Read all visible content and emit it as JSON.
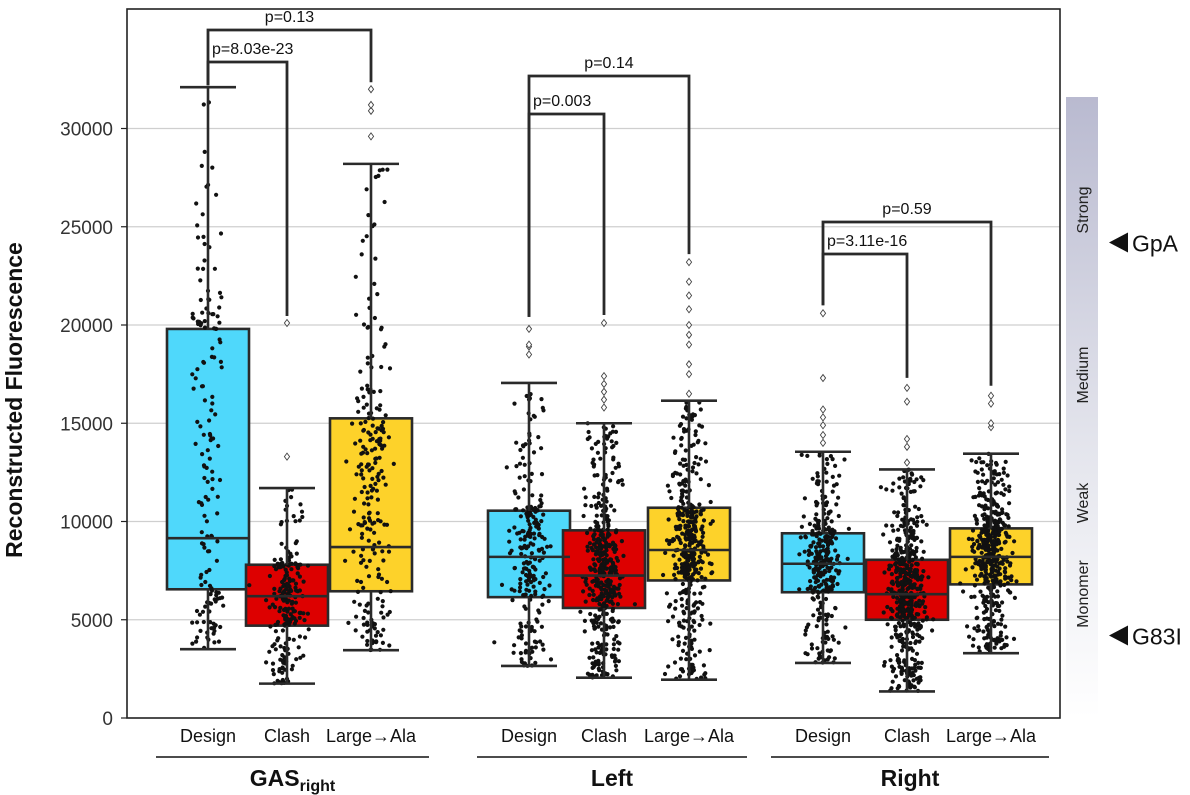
{
  "chart_data": {
    "type": "box",
    "ylabel": "Reconstructed Fluorescence",
    "ylim": [
      0,
      34000
    ],
    "yticks": [
      0,
      5000,
      10000,
      15000,
      20000,
      25000,
      30000
    ],
    "grid": true,
    "groups": [
      {
        "name": "GAS",
        "name_sub": "right",
        "boxes": [
          {
            "category": "Design",
            "color": "#4fd8fb",
            "min": 3500,
            "q1": 6550,
            "median": 9150,
            "q3": 19800,
            "max": 32100,
            "n_points": 160,
            "outliers": []
          },
          {
            "category": "Clash",
            "color": "#dd0000",
            "min": 1750,
            "q1": 4700,
            "median": 6200,
            "q3": 7800,
            "max": 11700,
            "n_points": 200,
            "outliers": [
              13300,
              20100
            ]
          },
          {
            "category": "Large→Ala",
            "color": "#fdd22a",
            "min": 3450,
            "q1": 6450,
            "median": 8700,
            "q3": 15250,
            "max": 28200,
            "n_points": 230,
            "outliers": [
              29600,
              30900,
              31200,
              32000
            ]
          }
        ],
        "comparisons": [
          {
            "label": "p=8.03e-23",
            "from": "Design",
            "to": "Clash"
          },
          {
            "label": "p=0.13",
            "from": "Design",
            "to": "Large→Ala"
          }
        ]
      },
      {
        "name": "Left",
        "name_sub": "",
        "boxes": [
          {
            "category": "Design",
            "color": "#4fd8fb",
            "min": 2650,
            "q1": 6150,
            "median": 8200,
            "q3": 10550,
            "max": 17050,
            "n_points": 230,
            "outliers": [
              18500,
              18900,
              19000,
              19800
            ]
          },
          {
            "category": "Clash",
            "color": "#dd0000",
            "min": 2050,
            "q1": 5600,
            "median": 7250,
            "q3": 9550,
            "max": 15000,
            "n_points": 420,
            "outliers": [
              15800,
              16200,
              16600,
              17000,
              17400,
              20100
            ]
          },
          {
            "category": "Large→Ala",
            "color": "#fdd22a",
            "min": 1950,
            "q1": 7000,
            "median": 8550,
            "q3": 10700,
            "max": 16150,
            "n_points": 420,
            "outliers": [
              16500,
              17500,
              18000,
              19000,
              19500,
              20000,
              20800,
              21500,
              22200,
              23200
            ]
          }
        ],
        "comparisons": [
          {
            "label": "p=0.003",
            "from": "Design",
            "to": "Clash"
          },
          {
            "label": "p=0.14",
            "from": "Design",
            "to": "Large→Ala"
          }
        ]
      },
      {
        "name": "Right",
        "name_sub": "",
        "boxes": [
          {
            "category": "Design",
            "color": "#4fd8fb",
            "min": 2800,
            "q1": 6400,
            "median": 7850,
            "q3": 9400,
            "max": 13550,
            "n_points": 300,
            "outliers": [
              14000,
              14400,
              14900,
              15300,
              15700,
              17300,
              20600
            ]
          },
          {
            "category": "Clash",
            "color": "#dd0000",
            "min": 1350,
            "q1": 5000,
            "median": 6300,
            "q3": 8050,
            "max": 12650,
            "n_points": 500,
            "outliers": [
              13000,
              13800,
              14200,
              16100,
              16800
            ]
          },
          {
            "category": "Large→Ala",
            "color": "#fdd22a",
            "min": 3300,
            "q1": 6800,
            "median": 8200,
            "q3": 9650,
            "max": 13450,
            "n_points": 450,
            "outliers": [
              14800,
              15000,
              16000,
              16400
            ]
          }
        ],
        "comparisons": [
          {
            "label": "p=3.11e-16",
            "from": "Design",
            "to": "Clash"
          },
          {
            "label": "p=0.59",
            "from": "Design",
            "to": "Large→Ala"
          }
        ]
      }
    ],
    "right_scale": {
      "bands": [
        "Strong",
        "Medium",
        "Weak",
        "Monomer"
      ],
      "markers": [
        {
          "label": "GpA",
          "y": 24200
        },
        {
          "label": "G83I",
          "y": 4200
        }
      ]
    }
  }
}
